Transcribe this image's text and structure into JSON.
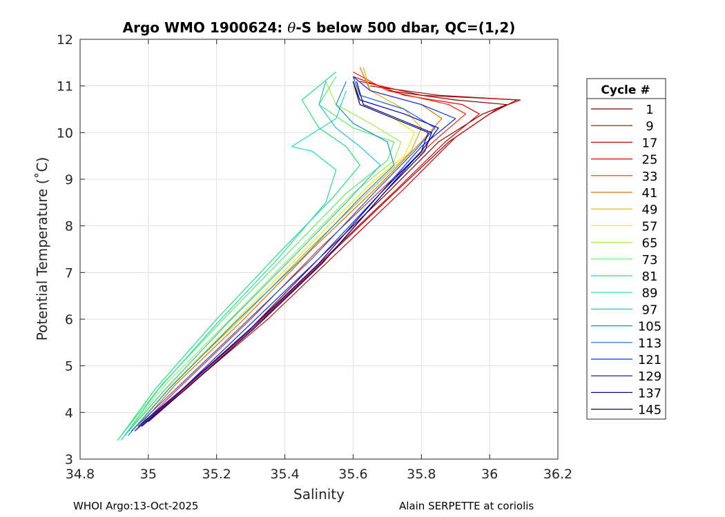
{
  "chart_data": {
    "type": "line",
    "title_prefix": "Argo WMO 1900624: ",
    "title_symbol": "θ",
    "title_suffix": "-S below 500 dbar,  QC=(1,2)",
    "xlabel": "Salinity",
    "ylabel": "Potential Temperature (˚C)",
    "xlim": [
      34.8,
      36.2
    ],
    "ylim": [
      3,
      12
    ],
    "xticks": [
      34.8,
      35,
      35.2,
      35.4,
      35.6,
      35.8,
      36,
      36.2
    ],
    "xtick_labels": [
      "34.8",
      "35",
      "35.2",
      "35.4",
      "35.6",
      "35.8",
      "36",
      "36.2"
    ],
    "yticks": [
      3,
      4,
      5,
      6,
      7,
      8,
      9,
      10,
      11,
      12
    ],
    "ytick_labels": [
      "3",
      "4",
      "5",
      "6",
      "7",
      "8",
      "9",
      "10",
      "11",
      "12"
    ],
    "grid": true,
    "legend": {
      "title": "Cycle #",
      "placement": "right-outside",
      "entries": [
        {
          "label": "1",
          "color": "#800000"
        },
        {
          "label": "9",
          "color": "#a00000"
        },
        {
          "label": "17",
          "color": "#c00000"
        },
        {
          "label": "25",
          "color": "#e00000"
        },
        {
          "label": "33",
          "color": "#ff2000"
        },
        {
          "label": "41",
          "color": "#e07000"
        },
        {
          "label": "49",
          "color": "#e0b000"
        },
        {
          "label": "57",
          "color": "#f0f000"
        },
        {
          "label": "65",
          "color": "#a0f040"
        },
        {
          "label": "73",
          "color": "#50f060"
        },
        {
          "label": "81",
          "color": "#20e080"
        },
        {
          "label": "89",
          "color": "#20e0b0"
        },
        {
          "label": "97",
          "color": "#20c0e0"
        },
        {
          "label": "105",
          "color": "#1090d0"
        },
        {
          "label": "113",
          "color": "#1060e0"
        },
        {
          "label": "121",
          "color": "#0030f0"
        },
        {
          "label": "129",
          "color": "#0000c0"
        },
        {
          "label": "137",
          "color": "#000090"
        },
        {
          "label": "145",
          "color": "#000070"
        }
      ]
    },
    "series": [
      {
        "cycle": 1,
        "color": "#800000",
        "x": [
          34.98,
          35.1,
          35.3,
          35.5,
          35.7,
          35.85,
          35.98,
          36.05,
          35.9,
          35.7
        ],
        "y": [
          3.7,
          4.5,
          5.8,
          7.3,
          8.7,
          9.8,
          10.4,
          10.6,
          10.7,
          10.9
        ]
      },
      {
        "cycle": 9,
        "color": "#a00000",
        "x": [
          34.99,
          35.12,
          35.32,
          35.52,
          35.72,
          35.88,
          36.0,
          36.08,
          35.85,
          35.65
        ],
        "y": [
          3.8,
          4.6,
          5.9,
          7.3,
          8.7,
          9.8,
          10.4,
          10.7,
          10.8,
          11.0
        ]
      },
      {
        "cycle": 17,
        "color": "#c00000",
        "x": [
          35.0,
          35.14,
          35.35,
          35.55,
          35.75,
          35.9,
          36.02,
          36.09,
          35.8,
          35.62
        ],
        "y": [
          3.8,
          4.7,
          6.0,
          7.4,
          8.8,
          9.9,
          10.5,
          10.7,
          10.8,
          11.1
        ]
      },
      {
        "cycle": 25,
        "color": "#e00000",
        "x": [
          34.98,
          35.12,
          35.33,
          35.53,
          35.73,
          35.87,
          35.97,
          35.92,
          35.75,
          35.6
        ],
        "y": [
          3.7,
          4.6,
          6.0,
          7.4,
          8.8,
          9.8,
          10.4,
          10.6,
          10.8,
          11.2
        ]
      },
      {
        "cycle": 33,
        "color": "#ff2000",
        "x": [
          34.96,
          35.1,
          35.3,
          35.5,
          35.7,
          35.85,
          35.93,
          35.88,
          35.7,
          35.6
        ],
        "y": [
          3.6,
          4.6,
          6.0,
          7.5,
          8.9,
          9.9,
          10.4,
          10.6,
          10.9,
          11.3
        ]
      },
      {
        "cycle": 41,
        "color": "#e07000",
        "x": [
          34.96,
          35.08,
          35.28,
          35.48,
          35.68,
          35.8,
          35.86,
          35.8,
          35.65,
          35.62
        ],
        "y": [
          3.6,
          4.6,
          6.0,
          7.5,
          8.9,
          9.8,
          10.3,
          10.6,
          10.9,
          11.4
        ]
      },
      {
        "cycle": 49,
        "color": "#e0b000",
        "x": [
          34.95,
          35.07,
          35.27,
          35.47,
          35.67,
          35.77,
          35.8,
          35.75,
          35.65,
          35.63
        ],
        "y": [
          3.6,
          4.6,
          6.0,
          7.5,
          8.9,
          9.6,
          10.1,
          10.5,
          10.9,
          11.4
        ]
      },
      {
        "cycle": 57,
        "color": "#f0f000",
        "x": [
          34.95,
          35.07,
          35.26,
          35.46,
          35.65,
          35.75,
          35.78,
          35.72,
          35.62,
          35.6
        ],
        "y": [
          3.6,
          4.6,
          6.0,
          7.5,
          8.9,
          9.5,
          10.0,
          10.3,
          10.6,
          11.0
        ]
      },
      {
        "cycle": 65,
        "color": "#a0f040",
        "x": [
          34.93,
          35.05,
          35.24,
          35.44,
          35.6,
          35.72,
          35.74,
          35.65,
          35.55,
          35.52
        ],
        "y": [
          3.5,
          4.6,
          6.0,
          7.5,
          8.7,
          9.4,
          9.8,
          10.2,
          10.6,
          11.1
        ]
      },
      {
        "cycle": 73,
        "color": "#50f060",
        "x": [
          34.92,
          35.04,
          35.22,
          35.42,
          35.58,
          35.7,
          35.72,
          35.6,
          35.5,
          35.55
        ],
        "y": [
          3.5,
          4.6,
          6.0,
          7.5,
          8.7,
          9.4,
          9.8,
          10.1,
          10.6,
          11.2
        ]
      },
      {
        "cycle": 81,
        "color": "#20e080",
        "x": [
          34.91,
          35.02,
          35.2,
          35.38,
          35.54,
          35.62,
          35.58,
          35.5,
          35.45,
          35.55
        ],
        "y": [
          3.4,
          4.5,
          6.0,
          7.4,
          8.6,
          9.3,
          9.7,
          10.1,
          10.7,
          11.3
        ]
      },
      {
        "cycle": 89,
        "color": "#20e0b0",
        "x": [
          34.92,
          35.03,
          35.2,
          35.38,
          35.52,
          35.55,
          35.48,
          35.42,
          35.55,
          35.58
        ],
        "y": [
          3.4,
          4.5,
          5.9,
          7.3,
          8.5,
          9.2,
          9.6,
          9.7,
          10.3,
          10.9
        ]
      },
      {
        "cycle": 97,
        "color": "#20c0e0",
        "x": [
          34.93,
          35.05,
          35.23,
          35.42,
          35.58,
          35.68,
          35.62,
          35.55,
          35.5,
          35.52
        ],
        "y": [
          3.5,
          4.5,
          5.9,
          7.3,
          8.5,
          9.3,
          9.7,
          10.1,
          10.6,
          11.1
        ]
      },
      {
        "cycle": 105,
        "color": "#1090d0",
        "x": [
          34.94,
          35.06,
          35.25,
          35.45,
          35.62,
          35.72,
          35.7,
          35.6,
          35.55,
          35.58
        ],
        "y": [
          3.5,
          4.5,
          5.9,
          7.3,
          8.6,
          9.3,
          9.8,
          10.2,
          10.6,
          11.1
        ]
      },
      {
        "cycle": 113,
        "color": "#1060e0",
        "x": [
          34.95,
          35.08,
          35.28,
          35.48,
          35.66,
          35.78,
          35.84,
          35.75,
          35.62,
          35.6
        ],
        "y": [
          3.6,
          4.5,
          5.9,
          7.3,
          8.7,
          9.6,
          10.1,
          10.5,
          10.8,
          11.2
        ]
      },
      {
        "cycle": 121,
        "color": "#0030f0",
        "x": [
          34.96,
          35.1,
          35.3,
          35.5,
          35.68,
          35.8,
          35.9,
          35.8,
          35.65,
          35.6
        ],
        "y": [
          3.6,
          4.5,
          5.9,
          7.3,
          8.7,
          9.7,
          10.3,
          10.6,
          10.9,
          11.2
        ]
      },
      {
        "cycle": 129,
        "color": "#0000c0",
        "x": [
          34.97,
          35.1,
          35.3,
          35.5,
          35.68,
          35.8,
          35.85,
          35.75,
          35.62,
          35.6
        ],
        "y": [
          3.7,
          4.5,
          5.8,
          7.2,
          8.7,
          9.6,
          10.1,
          10.4,
          10.7,
          11.1
        ]
      },
      {
        "cycle": 137,
        "color": "#000090",
        "x": [
          34.98,
          35.11,
          35.31,
          35.51,
          35.69,
          35.8,
          35.82,
          35.72,
          35.62,
          35.6
        ],
        "y": [
          3.7,
          4.5,
          5.8,
          7.2,
          8.7,
          9.6,
          10.0,
          10.3,
          10.6,
          11.1
        ]
      },
      {
        "cycle": 145,
        "color": "#000070",
        "x": [
          34.98,
          35.11,
          35.31,
          35.51,
          35.69,
          35.81,
          35.83,
          35.73,
          35.63,
          35.61
        ],
        "y": [
          3.7,
          4.5,
          5.8,
          7.2,
          8.7,
          9.6,
          10.0,
          10.3,
          10.6,
          11.1
        ]
      }
    ]
  },
  "footer": {
    "left": "WHOI Argo:13-Oct-2025",
    "right": "Alain SERPETTE at coriolis"
  }
}
